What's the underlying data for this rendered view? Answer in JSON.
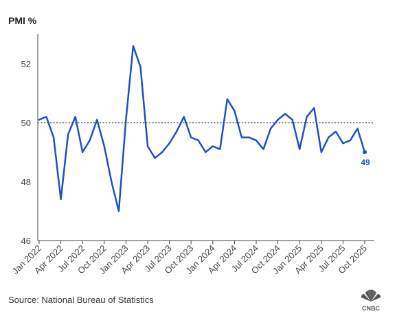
{
  "chart_data": {
    "type": "line",
    "title": "PMI %",
    "xlabel": "",
    "ylabel": "",
    "ylim": [
      46,
      53
    ],
    "yticks": [
      46,
      48,
      50,
      52
    ],
    "reference_line": 50,
    "grid": false,
    "line_color": "#1f4fc4",
    "x_tick_labels": [
      "Jan 2022",
      "Apr 2022",
      "Jul 2022",
      "Oct 2022",
      "Jan 2023",
      "Apr 2023",
      "Jul 2023",
      "Oct 2023",
      "Jan 2024",
      "Apr 2024",
      "Jul 2024",
      "Oct 2024",
      "Jan 2025",
      "Apr 2025",
      "Jul 2025",
      "Oct 2025"
    ],
    "x": [
      "2022-01",
      "2022-02",
      "2022-03",
      "2022-04",
      "2022-05",
      "2022-06",
      "2022-07",
      "2022-08",
      "2022-09",
      "2022-10",
      "2022-11",
      "2022-12",
      "2023-01",
      "2023-02",
      "2023-03",
      "2023-04",
      "2023-05",
      "2023-06",
      "2023-07",
      "2023-08",
      "2023-09",
      "2023-10",
      "2023-11",
      "2023-12",
      "2024-01",
      "2024-02",
      "2024-03",
      "2024-04",
      "2024-05",
      "2024-06",
      "2024-07",
      "2024-08",
      "2024-09",
      "2024-10",
      "2024-11",
      "2024-12",
      "2025-01",
      "2025-02",
      "2025-03",
      "2025-04",
      "2025-05",
      "2025-06",
      "2025-07",
      "2025-08",
      "2025-09",
      "2025-10"
    ],
    "series": [
      {
        "values": [
          50.1,
          50.2,
          49.5,
          47.4,
          49.6,
          50.2,
          49.0,
          49.4,
          50.1,
          49.2,
          48.0,
          47.0,
          50.1,
          52.6,
          51.9,
          49.2,
          48.8,
          49.0,
          49.3,
          49.7,
          50.2,
          49.5,
          49.4,
          49.0,
          49.2,
          49.1,
          50.8,
          50.4,
          49.5,
          49.5,
          49.4,
          49.1,
          49.8,
          50.1,
          50.3,
          50.1,
          49.1,
          50.2,
          50.5,
          49.0,
          49.5,
          49.7,
          49.3,
          49.4,
          49.8,
          49.0
        ]
      }
    ],
    "last_value_label": "49"
  },
  "source": "Source: National Bureau of Statistics",
  "brand": "CNBC"
}
